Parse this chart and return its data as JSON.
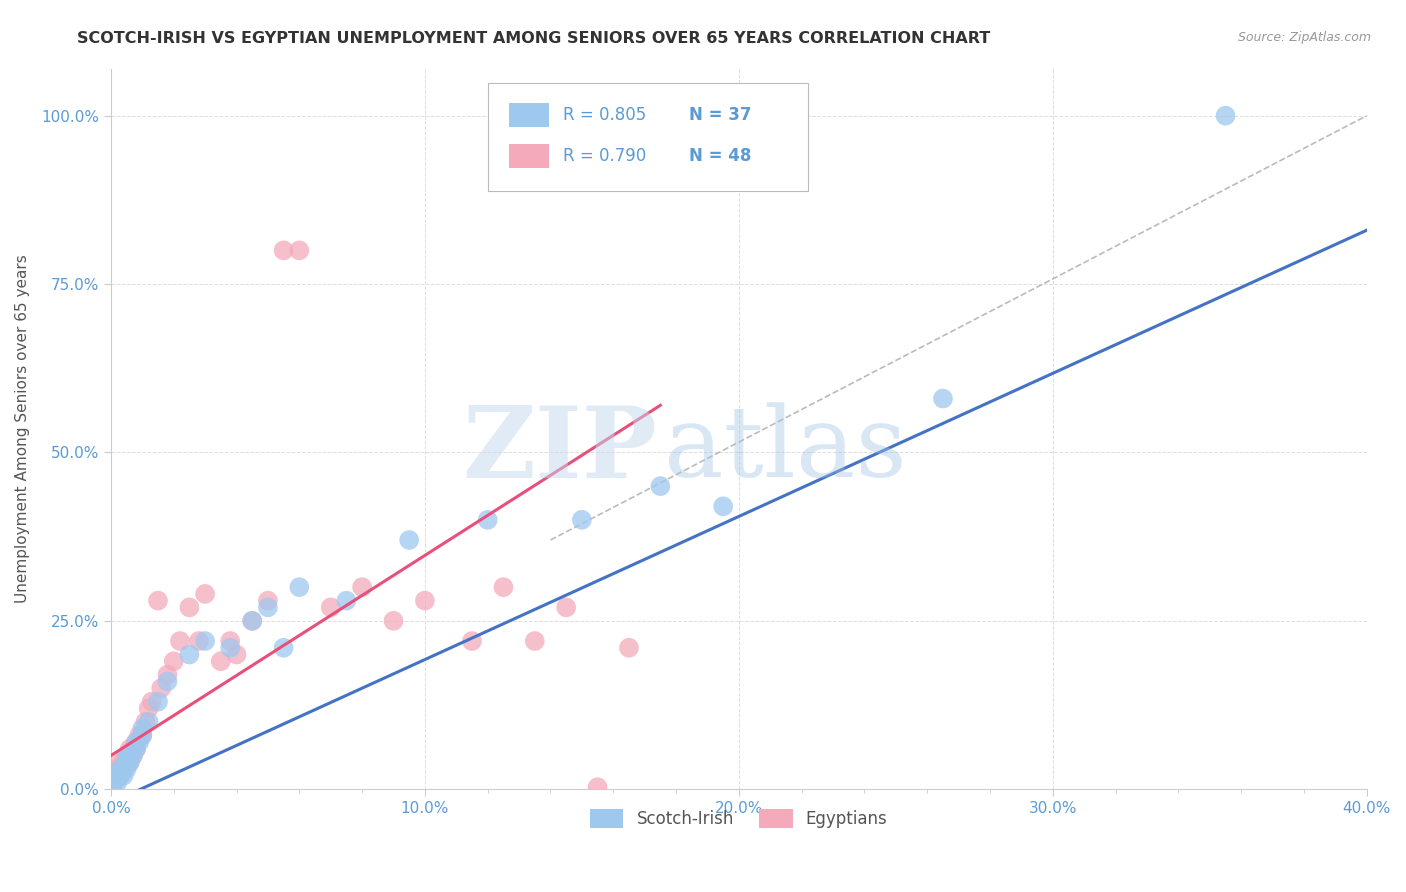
{
  "title": "SCOTCH-IRISH VS EGYPTIAN UNEMPLOYMENT AMONG SENIORS OVER 65 YEARS CORRELATION CHART",
  "source": "Source: ZipAtlas.com",
  "ylabel": "Unemployment Among Seniors over 65 years",
  "xmin": 0.0,
  "xmax": 0.4,
  "ymin": 0.0,
  "ymax": 1.07,
  "xtick_labels": [
    "0.0%",
    "",
    "",
    "",
    "",
    "10.0%",
    "",
    "",
    "",
    "",
    "20.0%",
    "",
    "",
    "",
    "",
    "30.0%",
    "",
    "",
    "",
    "",
    "40.0%"
  ],
  "xtick_values": [
    0.0,
    0.02,
    0.04,
    0.06,
    0.08,
    0.1,
    0.12,
    0.14,
    0.16,
    0.18,
    0.2,
    0.22,
    0.24,
    0.26,
    0.28,
    0.3,
    0.32,
    0.34,
    0.36,
    0.38,
    0.4
  ],
  "ytick_labels": [
    "0.0%",
    "25.0%",
    "50.0%",
    "75.0%",
    "100.0%"
  ],
  "ytick_values": [
    0.0,
    0.25,
    0.5,
    0.75,
    1.0
  ],
  "scotch_irish_color": "#9EC8EE",
  "egyptian_color": "#F4AABB",
  "scotch_irish_line_color": "#4472C4",
  "egyptian_line_color": "#E8507A",
  "diagonal_color": "#BBBBBB",
  "watermark_zip": "ZIP",
  "watermark_atlas": "atlas",
  "R_scotch": 0.805,
  "N_scotch": 37,
  "R_egyptian": 0.79,
  "N_egyptian": 48,
  "scotch_irish_x": [
    0.001,
    0.001,
    0.002,
    0.002,
    0.003,
    0.003,
    0.004,
    0.004,
    0.005,
    0.005,
    0.005,
    0.006,
    0.006,
    0.007,
    0.008,
    0.008,
    0.009,
    0.01,
    0.01,
    0.012,
    0.015,
    0.018,
    0.025,
    0.03,
    0.038,
    0.045,
    0.05,
    0.055,
    0.06,
    0.075,
    0.095,
    0.12,
    0.15,
    0.175,
    0.195,
    0.265,
    0.355
  ],
  "scotch_irish_y": [
    0.01,
    0.02,
    0.01,
    0.02,
    0.02,
    0.03,
    0.03,
    0.02,
    0.04,
    0.03,
    0.05,
    0.04,
    0.05,
    0.05,
    0.06,
    0.07,
    0.07,
    0.08,
    0.09,
    0.1,
    0.13,
    0.16,
    0.2,
    0.22,
    0.21,
    0.25,
    0.27,
    0.21,
    0.3,
    0.28,
    0.37,
    0.4,
    0.4,
    0.45,
    0.42,
    0.58,
    1.0
  ],
  "egyptian_x": [
    0.001,
    0.001,
    0.002,
    0.002,
    0.003,
    0.003,
    0.003,
    0.004,
    0.004,
    0.005,
    0.005,
    0.006,
    0.006,
    0.006,
    0.007,
    0.007,
    0.008,
    0.008,
    0.009,
    0.01,
    0.011,
    0.012,
    0.013,
    0.015,
    0.016,
    0.018,
    0.02,
    0.022,
    0.025,
    0.028,
    0.03,
    0.035,
    0.038,
    0.04,
    0.045,
    0.05,
    0.055,
    0.06,
    0.07,
    0.08,
    0.09,
    0.1,
    0.115,
    0.125,
    0.135,
    0.145,
    0.155,
    0.165
  ],
  "egyptian_y": [
    0.01,
    0.02,
    0.02,
    0.03,
    0.02,
    0.03,
    0.04,
    0.03,
    0.04,
    0.04,
    0.05,
    0.04,
    0.05,
    0.06,
    0.05,
    0.06,
    0.06,
    0.07,
    0.08,
    0.08,
    0.1,
    0.12,
    0.13,
    0.28,
    0.15,
    0.17,
    0.19,
    0.22,
    0.27,
    0.22,
    0.29,
    0.19,
    0.22,
    0.2,
    0.25,
    0.28,
    0.8,
    0.8,
    0.27,
    0.3,
    0.25,
    0.28,
    0.22,
    0.3,
    0.22,
    0.27,
    0.003,
    0.21
  ]
}
